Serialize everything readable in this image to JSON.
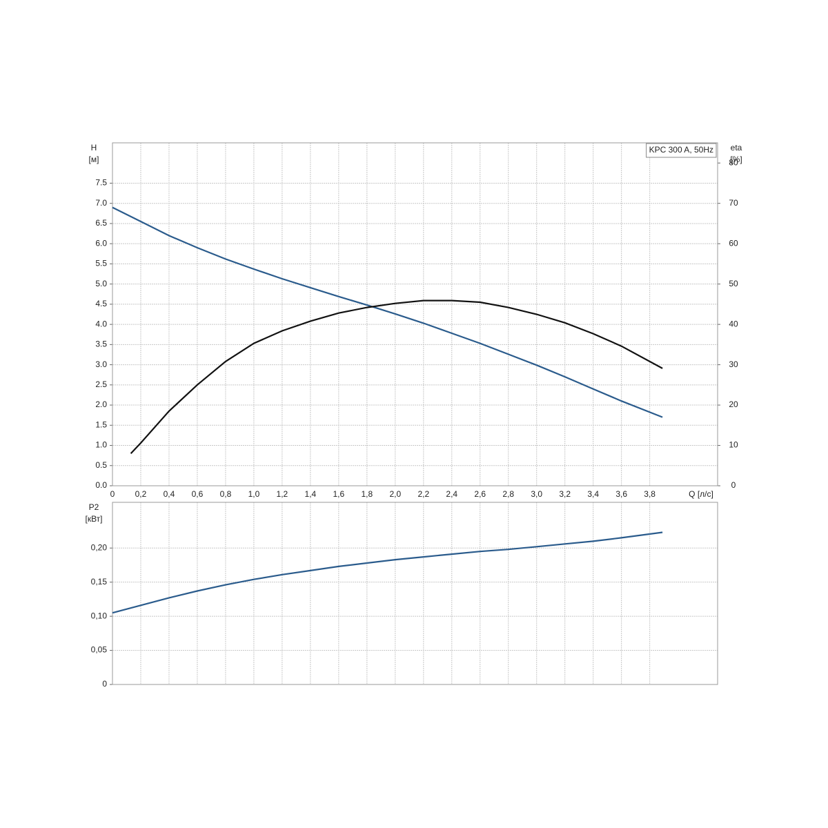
{
  "chart_data": [
    {
      "type": "line",
      "annotation": "KPC 300 A, 50Hz",
      "ylabel": [
        "H",
        "[м]"
      ],
      "y2label": [
        "eta",
        "[%]"
      ],
      "xlabel": "Q [л/с]",
      "grid": true,
      "xlim": [
        0,
        4.28
      ],
      "xticks": [
        0,
        {
          "value": 0.2,
          "label": "0,2"
        },
        {
          "value": 0.4,
          "label": "0,4"
        },
        {
          "value": 0.6,
          "label": "0,6"
        },
        {
          "value": 0.8,
          "label": "0,8"
        },
        {
          "value": 1.0,
          "label": "1,0"
        },
        {
          "value": 1.2,
          "label": "1,2"
        },
        {
          "value": 1.4,
          "label": "1,4"
        },
        {
          "value": 1.6,
          "label": "1,6"
        },
        {
          "value": 1.8,
          "label": "1,8"
        },
        {
          "value": 2.0,
          "label": "2,0"
        },
        {
          "value": 2.2,
          "label": "2,2"
        },
        {
          "value": 2.4,
          "label": "2,4"
        },
        {
          "value": 2.6,
          "label": "2,6"
        },
        {
          "value": 2.8,
          "label": "2,8"
        },
        {
          "value": 3.0,
          "label": "3,0"
        },
        {
          "value": 3.2,
          "label": "3,2"
        },
        {
          "value": 3.4,
          "label": "3,4"
        },
        {
          "value": 3.6,
          "label": "3,6"
        },
        {
          "value": 3.8,
          "label": "3,8"
        }
      ],
      "ylim": [
        0,
        8.5
      ],
      "yticks": [
        {
          "value": 0,
          "label": "0.0"
        },
        0.5,
        {
          "value": 1,
          "label": "1.0"
        },
        1.5,
        {
          "value": 2,
          "label": "2.0"
        },
        2.5,
        {
          "value": 3,
          "label": "3.0"
        },
        3.5,
        {
          "value": 4,
          "label": "4.0"
        },
        4.5,
        {
          "value": 5,
          "label": "5.0"
        },
        5.5,
        {
          "value": 6,
          "label": "6.0"
        },
        6.5,
        {
          "value": 7,
          "label": "7.0"
        },
        7.5
      ],
      "y2lim": [
        0,
        85
      ],
      "y2ticks": [
        0,
        10,
        20,
        30,
        40,
        50,
        60,
        70,
        80
      ],
      "series": [
        {
          "color": "#2a5b8c",
          "x": [
            0,
            0.2,
            0.4,
            0.6,
            0.8,
            1.0,
            1.2,
            1.4,
            1.6,
            1.8,
            2.0,
            2.2,
            2.4,
            2.6,
            2.8,
            3.0,
            3.2,
            3.4,
            3.6,
            3.89
          ],
          "values": [
            6.9,
            6.55,
            6.2,
            5.9,
            5.62,
            5.37,
            5.13,
            4.91,
            4.69,
            4.48,
            4.26,
            4.03,
            3.78,
            3.53,
            3.26,
            2.99,
            2.7,
            2.4,
            2.1,
            1.7
          ]
        },
        {
          "color": "#111111",
          "axis": "y2",
          "x": [
            0.13,
            0.2,
            0.4,
            0.6,
            0.8,
            1.0,
            1.2,
            1.4,
            1.6,
            1.8,
            2.0,
            2.2,
            2.4,
            2.6,
            2.8,
            3.0,
            3.2,
            3.4,
            3.6,
            3.89
          ],
          "values": [
            8,
            10.6,
            18.5,
            25,
            30.8,
            35.3,
            38.4,
            40.8,
            42.8,
            44.2,
            45.2,
            45.9,
            45.9,
            45.5,
            44.2,
            42.5,
            40.4,
            37.7,
            34.6,
            29.1
          ]
        }
      ]
    },
    {
      "type": "line",
      "ylabel": [
        "P2",
        "[кВт]"
      ],
      "grid": true,
      "ylim": [
        0,
        0.267
      ],
      "yticks": [
        0,
        {
          "value": 0.05,
          "label": "0,05"
        },
        {
          "value": 0.1,
          "label": "0,10"
        },
        {
          "value": 0.15,
          "label": "0,15"
        },
        {
          "value": 0.2,
          "label": "0,20"
        }
      ],
      "series": [
        {
          "color": "#2a5b8c",
          "x": [
            0,
            0.2,
            0.4,
            0.6,
            0.8,
            1.0,
            1.2,
            1.4,
            1.6,
            1.8,
            2.0,
            2.2,
            2.4,
            2.6,
            2.8,
            3.0,
            3.2,
            3.4,
            3.6,
            3.89
          ],
          "values": [
            0.105,
            0.116,
            0.127,
            0.137,
            0.146,
            0.154,
            0.161,
            0.167,
            0.173,
            0.178,
            0.183,
            0.187,
            0.191,
            0.195,
            0.198,
            0.202,
            0.206,
            0.21,
            0.215,
            0.223
          ]
        }
      ]
    }
  ]
}
